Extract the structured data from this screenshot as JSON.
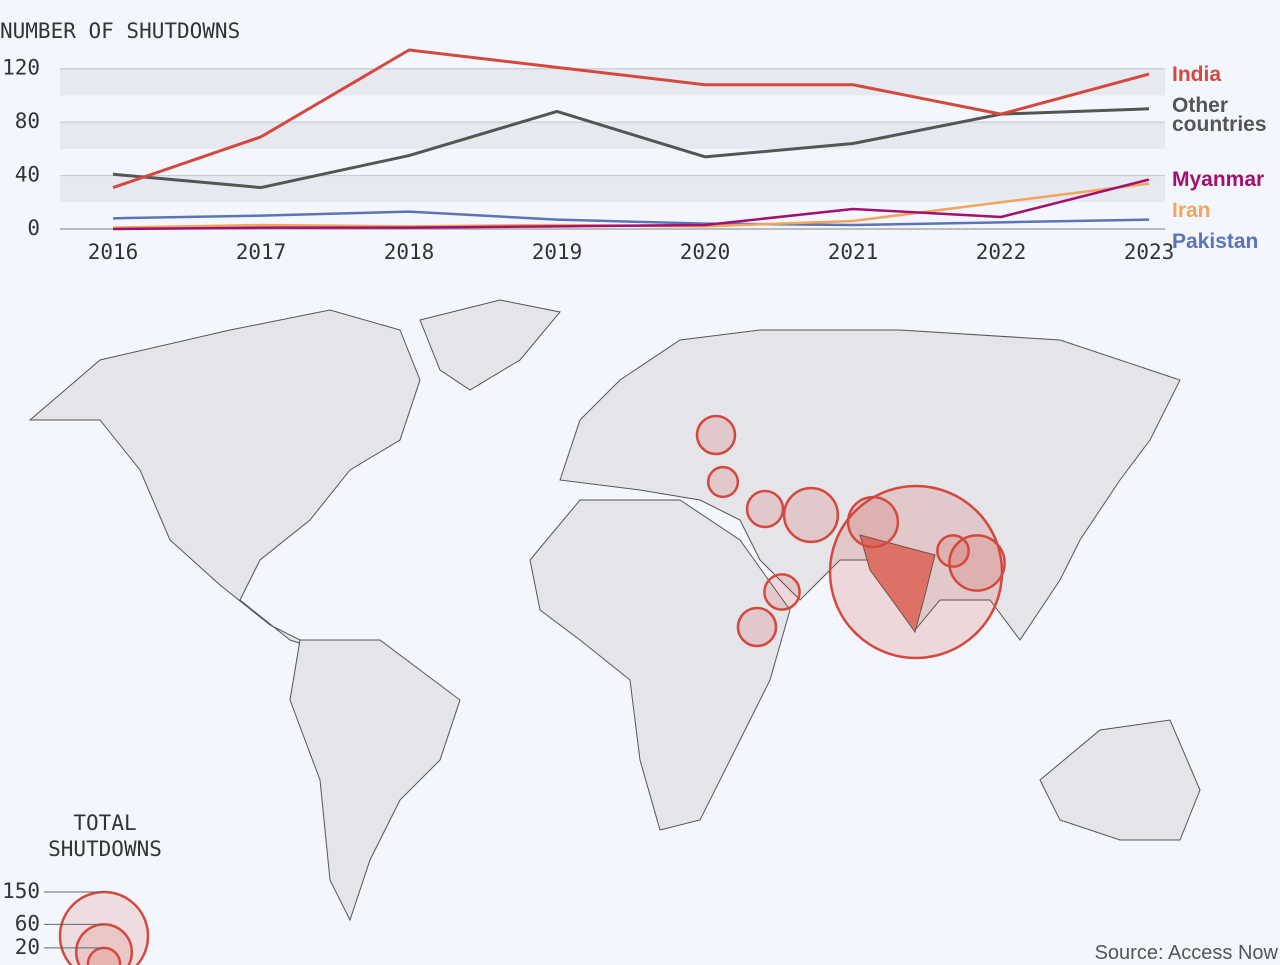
{
  "chart_data": [
    {
      "type": "line",
      "title": "NUMBER OF SHUTDOWNS",
      "categories": [
        "2016",
        "2017",
        "2018",
        "2019",
        "2020",
        "2021",
        "2022",
        "2023"
      ],
      "ylim": [
        0,
        140
      ],
      "yticks": [
        0,
        40,
        80,
        120
      ],
      "grid": true,
      "series": [
        {
          "name": "India",
          "color": "#d4483e",
          "values": [
            31,
            69,
            134,
            121,
            108,
            108,
            86,
            116
          ]
        },
        {
          "name": "Other countries",
          "color": "#555555",
          "values": [
            41,
            31,
            55,
            88,
            54,
            64,
            86,
            90
          ]
        },
        {
          "name": "Myanmar",
          "color": "#a3106f",
          "values": [
            0,
            1,
            1,
            2,
            3,
            15,
            9,
            37
          ]
        },
        {
          "name": "Iran",
          "color": "#f2a55c",
          "values": [
            1,
            3,
            2,
            3,
            2,
            6,
            20,
            34
          ]
        },
        {
          "name": "Pakistan",
          "color": "#5b74b9",
          "values": [
            8,
            10,
            13,
            7,
            4,
            3,
            5,
            7
          ]
        }
      ]
    },
    {
      "type": "bubble-map",
      "size_legend_title": "TOTAL SHUTDOWNS",
      "size_legend": [
        150,
        60,
        20
      ],
      "color": "#d4483e",
      "values": [
        573,
        59,
        48,
        56,
        25,
        28,
        24,
        28,
        17,
        19
      ],
      "source": "Source: Access Now"
    }
  ]
}
